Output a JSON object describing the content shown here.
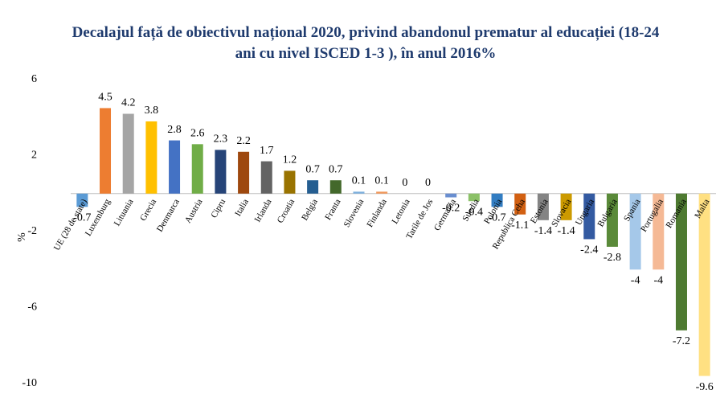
{
  "chart_data": {
    "type": "bar",
    "title": "Decalajul față de obiectivul național 2020, privind abandonul prematur al educației (18-24 ani cu nivel ISCED 1-3 ), în anul 2016%",
    "y_label": "%",
    "categories": [
      "UE (28 de state)",
      "Luxemburg",
      "Lituania",
      "Grecia",
      "Denmarca",
      "Austria",
      "Cipru",
      "Italia",
      "Irlanda",
      "Croatia",
      "Belgia",
      "Franta",
      "Slovenia",
      "Finlanda",
      "Letonia",
      "Tarile de Jos",
      "Germania",
      "Suedia",
      "Polonia",
      "Republica Ceha",
      "Estonia",
      "Slovacia",
      "Ungaria",
      "Bulgaria",
      "Spania",
      "Portugalia",
      "Romania",
      "Malta"
    ],
    "values": [
      -0.7,
      4.5,
      4.2,
      3.8,
      2.8,
      2.6,
      2.3,
      2.2,
      1.7,
      1.2,
      0.7,
      0.7,
      0.1,
      0.1,
      0,
      0,
      -0.2,
      -0.4,
      -0.7,
      -1.1,
      -1.4,
      -1.4,
      -2.4,
      -2.8,
      -4,
      -4,
      -7.2,
      -9.6
    ],
    "colors": [
      "#5b9bd5",
      "#ed7d31",
      "#a5a5a5",
      "#ffc000",
      "#4472c4",
      "#70ad47",
      "#264478",
      "#9e480e",
      "#636363",
      "#997300",
      "#255e91",
      "#43682b",
      "#7cafdd",
      "#f1975a",
      "#b7b7b7",
      "#ffcd33",
      "#698ed0",
      "#8cc168",
      "#327dc2",
      "#d26012",
      "#848484",
      "#cc9a00",
      "#335aa1",
      "#5a8a39",
      "#a5c8e9",
      "#f5b995",
      "#4e7a31",
      "#ffe082"
    ],
    "ylim": [
      -10,
      6
    ],
    "yticks": [
      -10,
      -6,
      -2,
      2,
      6
    ],
    "grid": false
  }
}
